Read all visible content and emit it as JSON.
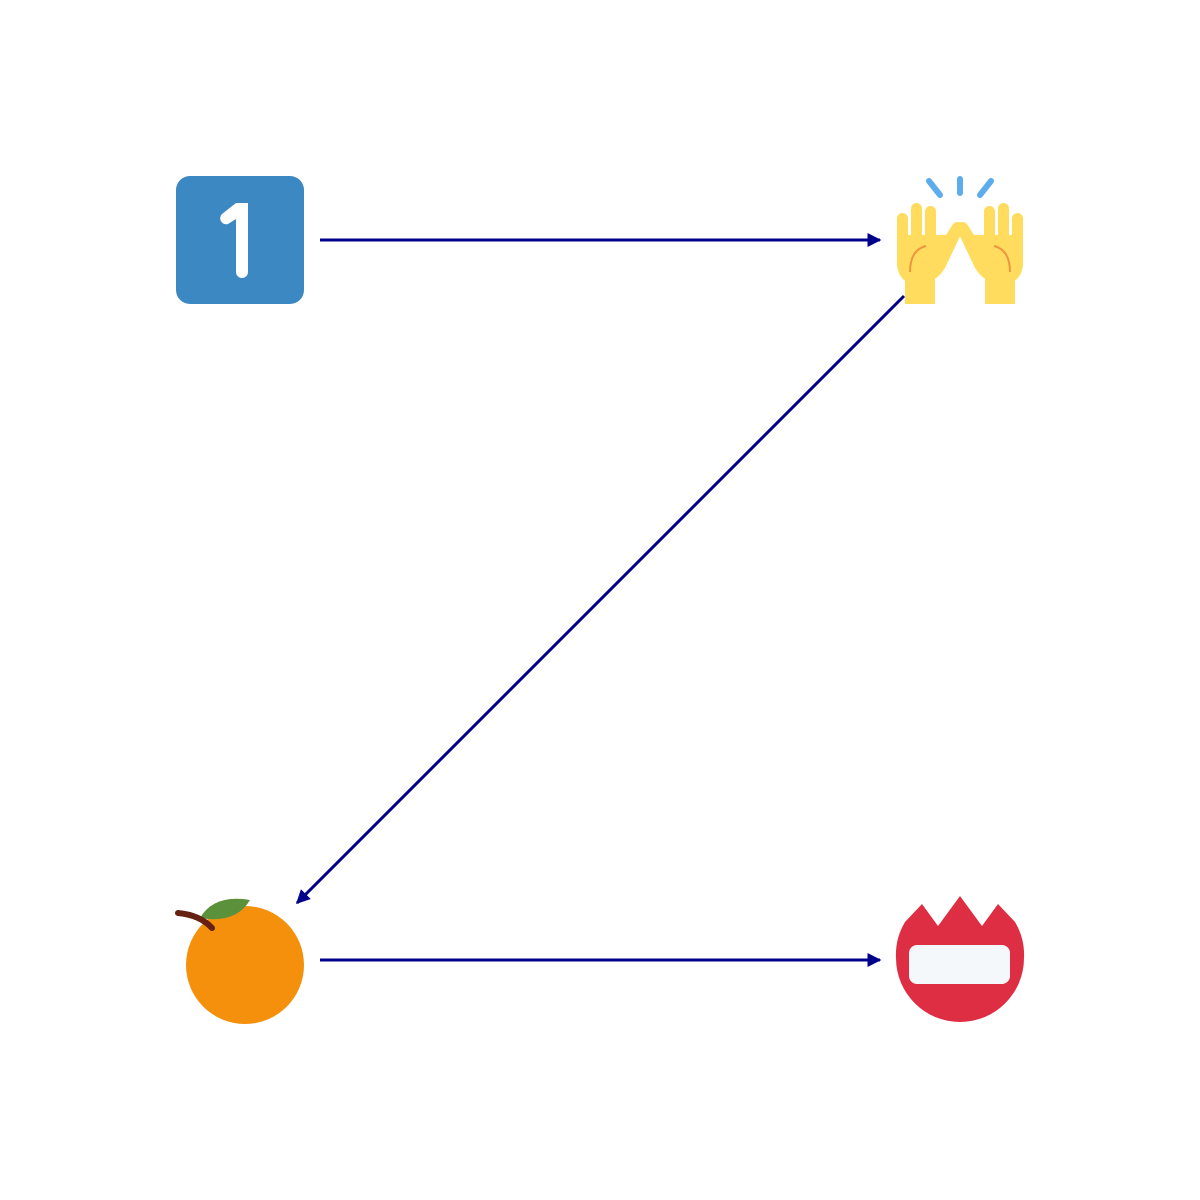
{
  "diagram": {
    "nodes": [
      {
        "id": "n1",
        "icon": "keycap-one-icon",
        "label": "1",
        "colors": {
          "bg": "#3B88C3",
          "fg": "#FFFFFF"
        }
      },
      {
        "id": "n2",
        "icon": "raising-hands-icon",
        "colors": {
          "skin": "#FFDC5D",
          "shade": "#EF9645",
          "sparkle": "#5DADEC"
        }
      },
      {
        "id": "n3",
        "icon": "tangerine-icon",
        "colors": {
          "fruit": "#F4900C",
          "leaf": "#5C913B",
          "stem": "#662113"
        }
      },
      {
        "id": "n4",
        "icon": "name-badge-icon",
        "colors": {
          "badge": "#DD2E44",
          "card": "#F5F8FA"
        }
      }
    ],
    "edges": [
      {
        "from": "n1",
        "to": "n2"
      },
      {
        "from": "n2",
        "to": "n3"
      },
      {
        "from": "n3",
        "to": "n4"
      }
    ],
    "edge_color": "#00008B"
  }
}
